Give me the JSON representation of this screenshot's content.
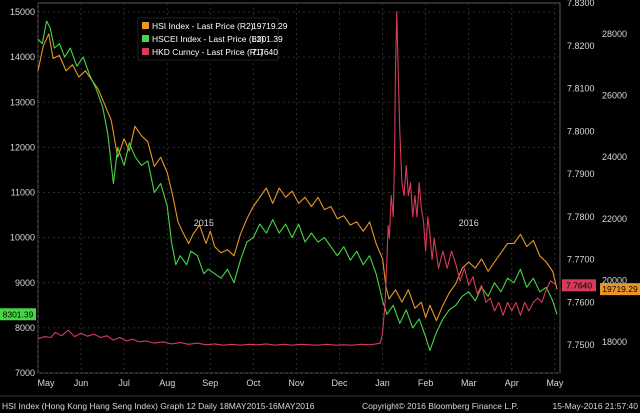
{
  "chart_data": {
    "type": "line",
    "ylim_left": [
      7000,
      15200
    ],
    "ylim_r1": [
      7.7435,
      7.83
    ],
    "ylim_r2": [
      17000,
      29000
    ],
    "yticks_left": [
      7000,
      8000,
      9000,
      10000,
      11000,
      12000,
      13000,
      14000,
      15000
    ],
    "yticks_r1": [
      7.75,
      7.76,
      7.77,
      7.78,
      7.79,
      7.8,
      7.81,
      7.82,
      7.83
    ],
    "yticks_r1_labels": [
      "7.7500",
      "7.7600",
      "7.7700",
      "7.7800",
      "7.7900",
      "7.8000",
      "7.8100",
      "7.8200",
      "7.8300"
    ],
    "yticks_r2": [
      18000,
      20000,
      22000,
      24000,
      26000,
      28000
    ],
    "x_month_ticks": [
      {
        "label": "May",
        "t": 0.0
      },
      {
        "label": "Jun",
        "t": 1.0
      },
      {
        "label": "Jul",
        "t": 2.0
      },
      {
        "label": "Aug",
        "t": 3.0
      },
      {
        "label": "Sep",
        "t": 4.0
      },
      {
        "label": "Oct",
        "t": 5.0
      },
      {
        "label": "Nov",
        "t": 6.0
      },
      {
        "label": "Dec",
        "t": 7.0
      },
      {
        "label": "Jan",
        "t": 8.0
      },
      {
        "label": "Feb",
        "t": 9.0
      },
      {
        "label": "Mar",
        "t": 10.0
      },
      {
        "label": "Apr",
        "t": 11.0
      },
      {
        "label": "May",
        "t": 12.0
      }
    ],
    "year_labels": [
      {
        "label": "2015",
        "t": 3.85
      },
      {
        "label": "2016",
        "t": 10.0
      }
    ],
    "grid": true,
    "legend_position": "top-left",
    "legend": [
      {
        "label": "HSI Index - Last Price (R2)",
        "value": "19719.29"
      },
      {
        "label": "HSCEI Index - Last Price (L1)",
        "value": "8301.39"
      },
      {
        "label": "HKD Curncy - Last Price (R1)",
        "value": "7.7640"
      }
    ],
    "series": [
      {
        "axis": "r2",
        "color": "#e8952a",
        "last_label": "19719.29",
        "points": [
          [
            0.0,
            26800
          ],
          [
            0.12,
            27600
          ],
          [
            0.25,
            28000
          ],
          [
            0.35,
            27200
          ],
          [
            0.5,
            27300
          ],
          [
            0.65,
            26800
          ],
          [
            0.8,
            27000
          ],
          [
            0.95,
            26600
          ],
          [
            1.1,
            26800
          ],
          [
            1.25,
            26500
          ],
          [
            1.4,
            26200
          ],
          [
            1.55,
            25700
          ],
          [
            1.7,
            25200
          ],
          [
            1.85,
            24000
          ],
          [
            2.0,
            24600
          ],
          [
            2.12,
            24200
          ],
          [
            2.25,
            25000
          ],
          [
            2.4,
            24700
          ],
          [
            2.55,
            24500
          ],
          [
            2.7,
            23700
          ],
          [
            2.85,
            24000
          ],
          [
            3.0,
            23500
          ],
          [
            3.12,
            22800
          ],
          [
            3.25,
            21900
          ],
          [
            3.35,
            21600
          ],
          [
            3.5,
            21200
          ],
          [
            3.6,
            21500
          ],
          [
            3.75,
            21800
          ],
          [
            3.9,
            21200
          ],
          [
            4.0,
            21600
          ],
          [
            4.1,
            21100
          ],
          [
            4.25,
            20900
          ],
          [
            4.4,
            21000
          ],
          [
            4.55,
            20800
          ],
          [
            4.7,
            21500
          ],
          [
            4.85,
            22000
          ],
          [
            5.0,
            22400
          ],
          [
            5.15,
            22700
          ],
          [
            5.3,
            23000
          ],
          [
            5.45,
            22500
          ],
          [
            5.6,
            23000
          ],
          [
            5.75,
            22700
          ],
          [
            5.9,
            22900
          ],
          [
            6.05,
            22500
          ],
          [
            6.2,
            22700
          ],
          [
            6.35,
            22400
          ],
          [
            6.5,
            22700
          ],
          [
            6.65,
            22300
          ],
          [
            6.8,
            22400
          ],
          [
            6.95,
            22000
          ],
          [
            7.1,
            22100
          ],
          [
            7.25,
            21800
          ],
          [
            7.4,
            21900
          ],
          [
            7.55,
            21600
          ],
          [
            7.7,
            21900
          ],
          [
            7.85,
            21200
          ],
          [
            8.0,
            20700
          ],
          [
            8.08,
            19800
          ],
          [
            8.15,
            19400
          ],
          [
            8.3,
            19700
          ],
          [
            8.45,
            19300
          ],
          [
            8.6,
            19700
          ],
          [
            8.75,
            19100
          ],
          [
            8.9,
            19300
          ],
          [
            9.0,
            18800
          ],
          [
            9.1,
            19200
          ],
          [
            9.25,
            18700
          ],
          [
            9.4,
            19200
          ],
          [
            9.55,
            19600
          ],
          [
            9.7,
            19900
          ],
          [
            9.85,
            20400
          ],
          [
            10.0,
            20600
          ],
          [
            10.15,
            20400
          ],
          [
            10.3,
            20700
          ],
          [
            10.45,
            20300
          ],
          [
            10.6,
            20600
          ],
          [
            10.75,
            20900
          ],
          [
            10.9,
            21200
          ],
          [
            11.05,
            21200
          ],
          [
            11.2,
            21500
          ],
          [
            11.35,
            21100
          ],
          [
            11.5,
            21300
          ],
          [
            11.65,
            20800
          ],
          [
            11.8,
            20600
          ],
          [
            11.95,
            20300
          ],
          [
            12.05,
            19719.29
          ]
        ]
      },
      {
        "axis": "left",
        "color": "#46d646",
        "last_label": "8301.39",
        "points": [
          [
            0.0,
            14400
          ],
          [
            0.1,
            14300
          ],
          [
            0.2,
            14800
          ],
          [
            0.28,
            14650
          ],
          [
            0.38,
            14200
          ],
          [
            0.5,
            14300
          ],
          [
            0.62,
            14000
          ],
          [
            0.75,
            14200
          ],
          [
            0.9,
            13800
          ],
          [
            1.05,
            14000
          ],
          [
            1.2,
            13600
          ],
          [
            1.35,
            13300
          ],
          [
            1.5,
            12900
          ],
          [
            1.62,
            12300
          ],
          [
            1.75,
            11200
          ],
          [
            1.85,
            12000
          ],
          [
            2.0,
            11600
          ],
          [
            2.12,
            12100
          ],
          [
            2.25,
            11800
          ],
          [
            2.4,
            11600
          ],
          [
            2.55,
            11700
          ],
          [
            2.7,
            11000
          ],
          [
            2.85,
            11200
          ],
          [
            3.0,
            10700
          ],
          [
            3.1,
            9900
          ],
          [
            3.2,
            9400
          ],
          [
            3.3,
            9600
          ],
          [
            3.45,
            9400
          ],
          [
            3.55,
            9700
          ],
          [
            3.7,
            9600
          ],
          [
            3.85,
            9200
          ],
          [
            3.95,
            9300
          ],
          [
            4.1,
            9200
          ],
          [
            4.25,
            9100
          ],
          [
            4.4,
            9300
          ],
          [
            4.55,
            9000
          ],
          [
            4.7,
            9500
          ],
          [
            4.85,
            9900
          ],
          [
            5.0,
            10000
          ],
          [
            5.15,
            10300
          ],
          [
            5.3,
            10100
          ],
          [
            5.45,
            10400
          ],
          [
            5.6,
            10100
          ],
          [
            5.75,
            10300
          ],
          [
            5.9,
            10000
          ],
          [
            6.05,
            10300
          ],
          [
            6.2,
            9900
          ],
          [
            6.35,
            10100
          ],
          [
            6.5,
            9900
          ],
          [
            6.65,
            10000
          ],
          [
            6.8,
            9800
          ],
          [
            6.95,
            9600
          ],
          [
            7.1,
            9800
          ],
          [
            7.25,
            9500
          ],
          [
            7.4,
            9700
          ],
          [
            7.55,
            9400
          ],
          [
            7.7,
            9600
          ],
          [
            7.85,
            9200
          ],
          [
            8.0,
            8600
          ],
          [
            8.1,
            8300
          ],
          [
            8.25,
            8500
          ],
          [
            8.4,
            8100
          ],
          [
            8.55,
            8400
          ],
          [
            8.7,
            8000
          ],
          [
            8.85,
            8200
          ],
          [
            9.0,
            7800
          ],
          [
            9.1,
            7500
          ],
          [
            9.25,
            7900
          ],
          [
            9.4,
            8200
          ],
          [
            9.55,
            8400
          ],
          [
            9.7,
            8500
          ],
          [
            9.85,
            8700
          ],
          [
            10.0,
            8800
          ],
          [
            10.15,
            8600
          ],
          [
            10.3,
            8900
          ],
          [
            10.45,
            8700
          ],
          [
            10.6,
            9000
          ],
          [
            10.75,
            8800
          ],
          [
            10.9,
            9100
          ],
          [
            11.05,
            9000
          ],
          [
            11.2,
            9300
          ],
          [
            11.35,
            8900
          ],
          [
            11.5,
            9100
          ],
          [
            11.65,
            8800
          ],
          [
            11.8,
            8900
          ],
          [
            11.95,
            8600
          ],
          [
            12.05,
            8301.39
          ]
        ]
      },
      {
        "axis": "r1",
        "color": "#d83a5a",
        "last_label": "7.7640",
        "points": [
          [
            0.0,
            7.7515
          ],
          [
            0.15,
            7.752
          ],
          [
            0.3,
            7.7518
          ],
          [
            0.4,
            7.753
          ],
          [
            0.55,
            7.7522
          ],
          [
            0.7,
            7.7535
          ],
          [
            0.85,
            7.752
          ],
          [
            1.0,
            7.7528
          ],
          [
            1.15,
            7.7521
          ],
          [
            1.3,
            7.7526
          ],
          [
            1.45,
            7.7518
          ],
          [
            1.6,
            7.7522
          ],
          [
            1.75,
            7.7512
          ],
          [
            1.9,
            7.7518
          ],
          [
            2.05,
            7.751
          ],
          [
            2.2,
            7.7514
          ],
          [
            2.35,
            7.7508
          ],
          [
            2.5,
            7.751
          ],
          [
            2.7,
            7.7505
          ],
          [
            2.9,
            7.7508
          ],
          [
            3.1,
            7.7503
          ],
          [
            3.3,
            7.7506
          ],
          [
            3.5,
            7.7502
          ],
          [
            3.7,
            7.7505
          ],
          [
            3.9,
            7.7501
          ],
          [
            4.1,
            7.7503
          ],
          [
            4.3,
            7.75
          ],
          [
            4.5,
            7.7502
          ],
          [
            4.7,
            7.75
          ],
          [
            4.9,
            7.7502
          ],
          [
            5.1,
            7.7501
          ],
          [
            5.3,
            7.7503
          ],
          [
            5.5,
            7.75
          ],
          [
            5.7,
            7.7502
          ],
          [
            5.9,
            7.75
          ],
          [
            6.1,
            7.7502
          ],
          [
            6.3,
            7.7501
          ],
          [
            6.5,
            7.75
          ],
          [
            6.7,
            7.7502
          ],
          [
            6.9,
            7.75
          ],
          [
            7.1,
            7.7501
          ],
          [
            7.3,
            7.75
          ],
          [
            7.5,
            7.7502
          ],
          [
            7.7,
            7.7501
          ],
          [
            7.85,
            7.7503
          ],
          [
            7.95,
            7.7505
          ],
          [
            8.0,
            7.753
          ],
          [
            8.06,
            7.76
          ],
          [
            8.1,
            7.77
          ],
          [
            8.13,
            7.778
          ],
          [
            8.16,
            7.775
          ],
          [
            8.2,
            7.785
          ],
          [
            8.25,
            7.78
          ],
          [
            8.28,
            7.795
          ],
          [
            8.3,
            7.815
          ],
          [
            8.33,
            7.828
          ],
          [
            8.36,
            7.815
          ],
          [
            8.4,
            7.8
          ],
          [
            8.45,
            7.788
          ],
          [
            8.5,
            7.785
          ],
          [
            8.55,
            7.792
          ],
          [
            8.6,
            7.785
          ],
          [
            8.65,
            7.788
          ],
          [
            8.7,
            7.78
          ],
          [
            8.75,
            7.785
          ],
          [
            8.8,
            7.78
          ],
          [
            8.85,
            7.788
          ],
          [
            8.9,
            7.782
          ],
          [
            8.95,
            7.779
          ],
          [
            9.0,
            7.772
          ],
          [
            9.05,
            7.78
          ],
          [
            9.1,
            7.776
          ],
          [
            9.15,
            7.77
          ],
          [
            9.2,
            7.775
          ],
          [
            9.3,
            7.768
          ],
          [
            9.4,
            7.772
          ],
          [
            9.5,
            7.768
          ],
          [
            9.6,
            7.772
          ],
          [
            9.7,
            7.769
          ],
          [
            9.8,
            7.765
          ],
          [
            9.9,
            7.768
          ],
          [
            10.0,
            7.764
          ],
          [
            10.1,
            7.766
          ],
          [
            10.2,
            7.762
          ],
          [
            10.3,
            7.764
          ],
          [
            10.4,
            7.76
          ],
          [
            10.5,
            7.761
          ],
          [
            10.6,
            7.758
          ],
          [
            10.7,
            7.76
          ],
          [
            10.8,
            7.757
          ],
          [
            10.9,
            7.76
          ],
          [
            11.0,
            7.758
          ],
          [
            11.1,
            7.76
          ],
          [
            11.2,
            7.757
          ],
          [
            11.3,
            7.76
          ],
          [
            11.4,
            7.758
          ],
          [
            11.5,
            7.76
          ],
          [
            11.6,
            7.761
          ],
          [
            11.7,
            7.76
          ],
          [
            11.8,
            7.763
          ],
          [
            11.9,
            7.765
          ],
          [
            12.05,
            7.764
          ]
        ]
      }
    ]
  },
  "footer": {
    "left": "HSI Index (Hong Kong Hang Seng Index) Graph 12  Daily 18MAY2015-16MAY2016",
    "center": "Copyright© 2016 Bloomberg Finance L.P.",
    "right": "15-May-2016 21:57:40"
  }
}
